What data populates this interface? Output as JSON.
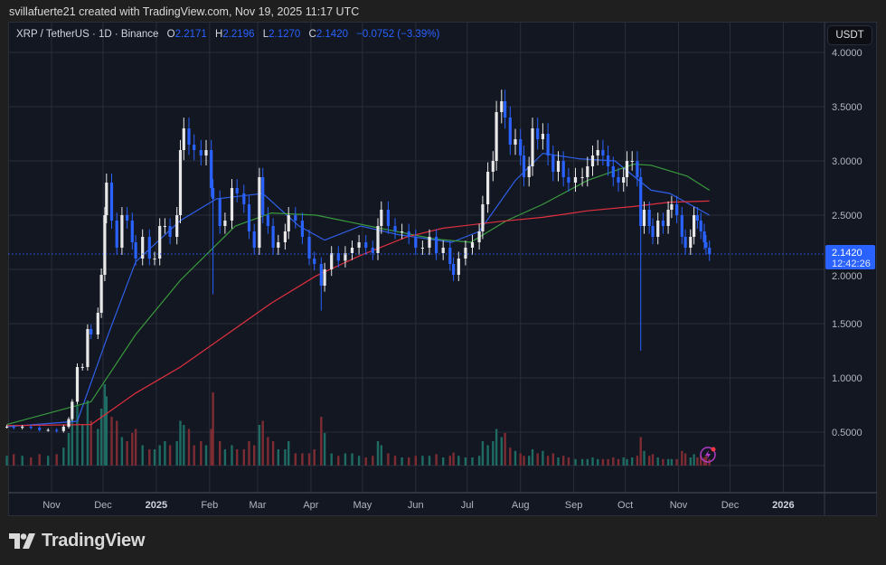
{
  "credit": "svillafuerte21 created with TradingView.com, Nov 19, 2025 11:17 UTC",
  "legend": {
    "symbol": "XRP / TetherUS · 1D · Binance",
    "o_label": "O",
    "o": "2.2171",
    "h_label": "H",
    "h": "2.2196",
    "l_label": "L",
    "l": "2.1270",
    "c_label": "C",
    "c": "2.1420",
    "change": "−0.0752 (−3.39%)"
  },
  "currency_button": "USDT",
  "last_price_label": {
    "price": "2.1420",
    "countdown": "12:42:26"
  },
  "logo_text": "TradingView",
  "alert_icon": "lightning-alert-icon",
  "colors": {
    "up": "#e8e8e8",
    "down": "#2962ff",
    "vol_up": "#1e6b63",
    "vol_down": "#7d2c33",
    "ma_blue": "#2f5fe8",
    "ma_green": "#3a9a3e",
    "ma_red": "#e0303f",
    "last_price": "#2962ff"
  },
  "chart_data": {
    "type": "candlestick",
    "yticks": [
      "4.0000",
      "3.5000",
      "3.0000",
      "2.5000",
      "2.0000",
      "1.5000",
      "1.0000",
      "0.5000"
    ],
    "ylim": [
      0.15,
      4.2
    ],
    "xticks": [
      {
        "label": "Nov",
        "date": "2024-11-01",
        "bold": false
      },
      {
        "label": "Dec",
        "date": "2024-12-01",
        "bold": false
      },
      {
        "label": "2025",
        "date": "2025-01-01",
        "bold": true
      },
      {
        "label": "Feb",
        "date": "2025-02-01",
        "bold": false
      },
      {
        "label": "Mar",
        "date": "2025-03-01",
        "bold": false
      },
      {
        "label": "Apr",
        "date": "2025-04-01",
        "bold": false
      },
      {
        "label": "May",
        "date": "2025-05-01",
        "bold": false
      },
      {
        "label": "Jun",
        "date": "2025-06-01",
        "bold": false
      },
      {
        "label": "Jul",
        "date": "2025-07-01",
        "bold": false
      },
      {
        "label": "Aug",
        "date": "2025-08-01",
        "bold": false
      },
      {
        "label": "Sep",
        "date": "2025-09-01",
        "bold": false
      },
      {
        "label": "Oct",
        "date": "2025-10-01",
        "bold": false
      },
      {
        "label": "Nov",
        "date": "2025-11-01",
        "bold": false
      },
      {
        "label": "Dec",
        "date": "2025-12-01",
        "bold": false
      },
      {
        "label": "2026",
        "date": "2026-01-01",
        "bold": true
      }
    ],
    "last_price": 2.142,
    "candles_date_close_volume": [
      [
        "2024-10-06",
        0.55,
        12
      ],
      [
        "2024-10-10",
        0.54,
        14
      ],
      [
        "2024-10-15",
        0.55,
        12
      ],
      [
        "2024-10-20",
        0.54,
        10
      ],
      [
        "2024-10-25",
        0.52,
        14
      ],
      [
        "2024-10-30",
        0.52,
        12
      ],
      [
        "2024-11-04",
        0.51,
        14
      ],
      [
        "2024-11-08",
        0.55,
        22
      ],
      [
        "2024-11-11",
        0.62,
        40
      ],
      [
        "2024-11-13",
        0.78,
        70
      ],
      [
        "2024-11-16",
        1.1,
        75
      ],
      [
        "2024-11-19",
        1.1,
        50
      ],
      [
        "2024-11-22",
        1.45,
        80
      ],
      [
        "2024-11-24",
        1.4,
        55
      ],
      [
        "2024-11-28",
        1.6,
        45
      ],
      [
        "2024-11-30",
        1.95,
        70
      ],
      [
        "2024-12-02",
        2.5,
        100
      ],
      [
        "2024-12-03",
        2.8,
        85
      ],
      [
        "2024-12-06",
        2.45,
        60
      ],
      [
        "2024-12-09",
        2.2,
        55
      ],
      [
        "2024-12-12",
        2.5,
        35
      ],
      [
        "2024-12-15",
        2.45,
        30
      ],
      [
        "2024-12-18",
        2.25,
        40
      ],
      [
        "2024-12-20",
        2.1,
        45
      ],
      [
        "2024-12-24",
        2.3,
        25
      ],
      [
        "2024-12-28",
        2.1,
        20
      ],
      [
        "2024-12-31",
        2.1,
        20
      ],
      [
        "2025-01-03",
        2.4,
        25
      ],
      [
        "2025-01-06",
        2.4,
        30
      ],
      [
        "2025-01-09",
        2.3,
        25
      ],
      [
        "2025-01-13",
        2.5,
        30
      ],
      [
        "2025-01-15",
        3.1,
        55
      ],
      [
        "2025-01-17",
        3.3,
        50
      ],
      [
        "2025-01-20",
        3.15,
        45
      ],
      [
        "2025-01-23",
        3.1,
        25
      ],
      [
        "2025-01-27",
        3.05,
        30
      ],
      [
        "2025-01-30",
        3.1,
        25
      ],
      [
        "2025-02-02",
        2.75,
        45
      ],
      [
        "2025-02-03",
        2.65,
        90
      ],
      [
        "2025-02-07",
        2.4,
        30
      ],
      [
        "2025-02-10",
        2.45,
        20
      ],
      [
        "2025-02-14",
        2.75,
        25
      ],
      [
        "2025-02-17",
        2.7,
        20
      ],
      [
        "2025-02-21",
        2.6,
        20
      ],
      [
        "2025-02-24",
        2.35,
        30
      ],
      [
        "2025-02-27",
        2.2,
        25
      ],
      [
        "2025-03-02",
        2.85,
        50
      ],
      [
        "2025-03-04",
        2.5,
        55
      ],
      [
        "2025-03-07",
        2.4,
        35
      ],
      [
        "2025-03-10",
        2.2,
        30
      ],
      [
        "2025-03-13",
        2.25,
        20
      ],
      [
        "2025-03-17",
        2.35,
        20
      ],
      [
        "2025-03-19",
        2.5,
        30
      ],
      [
        "2025-03-23",
        2.45,
        15
      ],
      [
        "2025-03-27",
        2.3,
        15
      ],
      [
        "2025-03-31",
        2.1,
        15
      ],
      [
        "2025-04-03",
        2.05,
        20
      ],
      [
        "2025-04-07",
        1.85,
        60
      ],
      [
        "2025-04-09",
        2.0,
        40
      ],
      [
        "2025-04-13",
        2.15,
        15
      ],
      [
        "2025-04-17",
        2.08,
        12
      ],
      [
        "2025-04-21",
        2.15,
        15
      ],
      [
        "2025-04-25",
        2.2,
        15
      ],
      [
        "2025-04-29",
        2.25,
        12
      ],
      [
        "2025-05-03",
        2.2,
        10
      ],
      [
        "2025-05-07",
        2.15,
        12
      ],
      [
        "2025-05-10",
        2.4,
        30
      ],
      [
        "2025-05-12",
        2.55,
        25
      ],
      [
        "2025-05-16",
        2.4,
        15
      ],
      [
        "2025-05-20",
        2.35,
        12
      ],
      [
        "2025-05-24",
        2.35,
        10
      ],
      [
        "2025-05-28",
        2.3,
        10
      ],
      [
        "2025-06-01",
        2.2,
        12
      ],
      [
        "2025-06-05",
        2.2,
        12
      ],
      [
        "2025-06-09",
        2.3,
        12
      ],
      [
        "2025-06-13",
        2.15,
        14
      ],
      [
        "2025-06-17",
        2.2,
        10
      ],
      [
        "2025-06-21",
        2.05,
        12
      ],
      [
        "2025-06-23",
        1.95,
        16
      ],
      [
        "2025-06-26",
        2.1,
        12
      ],
      [
        "2025-06-30",
        2.2,
        10
      ],
      [
        "2025-07-04",
        2.25,
        10
      ],
      [
        "2025-07-08",
        2.35,
        12
      ],
      [
        "2025-07-10",
        2.6,
        30
      ],
      [
        "2025-07-13",
        2.9,
        25
      ],
      [
        "2025-07-16",
        3.0,
        30
      ],
      [
        "2025-07-18",
        3.45,
        45
      ],
      [
        "2025-07-21",
        3.55,
        35
      ],
      [
        "2025-07-23",
        3.4,
        40
      ],
      [
        "2025-07-26",
        3.15,
        22
      ],
      [
        "2025-07-29",
        3.2,
        18
      ],
      [
        "2025-08-01",
        3.05,
        15
      ],
      [
        "2025-08-03",
        2.85,
        12
      ],
      [
        "2025-08-06",
        2.95,
        12
      ],
      [
        "2025-08-08",
        3.3,
        20
      ],
      [
        "2025-08-11",
        3.2,
        15
      ],
      [
        "2025-08-14",
        3.25,
        18
      ],
      [
        "2025-08-17",
        3.05,
        12
      ],
      [
        "2025-08-20",
        2.9,
        15
      ],
      [
        "2025-08-23",
        3.0,
        10
      ],
      [
        "2025-08-26",
        2.85,
        12
      ],
      [
        "2025-08-29",
        2.8,
        10
      ],
      [
        "2025-09-02",
        2.85,
        8
      ],
      [
        "2025-09-06",
        2.85,
        8
      ],
      [
        "2025-09-09",
        2.95,
        8
      ],
      [
        "2025-09-12",
        3.05,
        10
      ],
      [
        "2025-09-15",
        3.1,
        8
      ],
      [
        "2025-09-18",
        3.05,
        8
      ],
      [
        "2025-09-21",
        2.95,
        8
      ],
      [
        "2025-09-24",
        2.85,
        10
      ],
      [
        "2025-09-27",
        2.8,
        8
      ],
      [
        "2025-09-30",
        2.85,
        10
      ],
      [
        "2025-10-02",
        3.0,
        8
      ],
      [
        "2025-10-05",
        3.0,
        10
      ],
      [
        "2025-10-08",
        2.85,
        12
      ],
      [
        "2025-10-10",
        2.4,
        35
      ],
      [
        "2025-10-12",
        2.55,
        18
      ],
      [
        "2025-10-15",
        2.4,
        12
      ],
      [
        "2025-10-17",
        2.3,
        14
      ],
      [
        "2025-10-20",
        2.45,
        10
      ],
      [
        "2025-10-23",
        2.4,
        8
      ],
      [
        "2025-10-26",
        2.55,
        8
      ],
      [
        "2025-10-28",
        2.6,
        8
      ],
      [
        "2025-10-31",
        2.5,
        8
      ],
      [
        "2025-11-03",
        2.3,
        18
      ],
      [
        "2025-11-05",
        2.2,
        15
      ],
      [
        "2025-11-08",
        2.3,
        10
      ],
      [
        "2025-11-10",
        2.5,
        14
      ],
      [
        "2025-11-12",
        2.45,
        10
      ],
      [
        "2025-11-14",
        2.35,
        12
      ],
      [
        "2025-11-16",
        2.25,
        10
      ],
      [
        "2025-11-17",
        2.2,
        12
      ],
      [
        "2025-11-19",
        2.142,
        8
      ]
    ],
    "wick_lows": [
      [
        "2025-02-03",
        1.77
      ],
      [
        "2025-04-07",
        1.62
      ],
      [
        "2025-10-10",
        1.25
      ]
    ],
    "moving_averages": [
      {
        "color": "#2f5fe8",
        "points": [
          [
            "2024-10-06",
            0.55
          ],
          [
            "2024-11-16",
            0.6
          ],
          [
            "2024-12-04",
            1.4
          ],
          [
            "2024-12-20",
            2.07
          ],
          [
            "2025-01-15",
            2.45
          ],
          [
            "2025-02-05",
            2.65
          ],
          [
            "2025-03-04",
            2.7
          ],
          [
            "2025-03-25",
            2.4
          ],
          [
            "2025-04-09",
            2.27
          ],
          [
            "2025-04-30",
            2.4
          ],
          [
            "2025-05-22",
            2.32
          ],
          [
            "2025-06-22",
            2.25
          ],
          [
            "2025-07-08",
            2.35
          ],
          [
            "2025-07-29",
            2.82
          ],
          [
            "2025-08-14",
            3.07
          ],
          [
            "2025-09-04",
            3.02
          ],
          [
            "2025-09-25",
            3.0
          ],
          [
            "2025-10-16",
            2.73
          ],
          [
            "2025-10-27",
            2.7
          ],
          [
            "2025-11-19",
            2.5
          ]
        ]
      },
      {
        "color": "#3a9a3e",
        "points": [
          [
            "2024-10-06",
            0.57
          ],
          [
            "2024-11-24",
            0.78
          ],
          [
            "2024-12-20",
            1.4
          ],
          [
            "2025-01-15",
            1.9
          ],
          [
            "2025-02-16",
            2.4
          ],
          [
            "2025-03-09",
            2.52
          ],
          [
            "2025-04-04",
            2.5
          ],
          [
            "2025-05-11",
            2.38
          ],
          [
            "2025-06-12",
            2.28
          ],
          [
            "2025-07-03",
            2.25
          ],
          [
            "2025-07-24",
            2.45
          ],
          [
            "2025-08-14",
            2.6
          ],
          [
            "2025-09-09",
            2.82
          ],
          [
            "2025-10-06",
            2.97
          ],
          [
            "2025-10-16",
            2.96
          ],
          [
            "2025-11-06",
            2.86
          ],
          [
            "2025-11-19",
            2.73
          ]
        ]
      },
      {
        "color": "#e0303f",
        "points": [
          [
            "2024-10-06",
            0.56
          ],
          [
            "2024-11-24",
            0.57
          ],
          [
            "2024-12-20",
            0.86
          ],
          [
            "2025-01-15",
            1.1
          ],
          [
            "2025-02-11",
            1.4
          ],
          [
            "2025-03-09",
            1.69
          ],
          [
            "2025-04-04",
            1.94
          ],
          [
            "2025-04-30",
            2.13
          ],
          [
            "2025-05-27",
            2.3
          ],
          [
            "2025-06-17",
            2.38
          ],
          [
            "2025-07-19",
            2.44
          ],
          [
            "2025-08-14",
            2.48
          ],
          [
            "2025-09-09",
            2.54
          ],
          [
            "2025-10-06",
            2.58
          ],
          [
            "2025-10-27",
            2.62
          ],
          [
            "2025-11-19",
            2.63
          ]
        ]
      }
    ]
  }
}
